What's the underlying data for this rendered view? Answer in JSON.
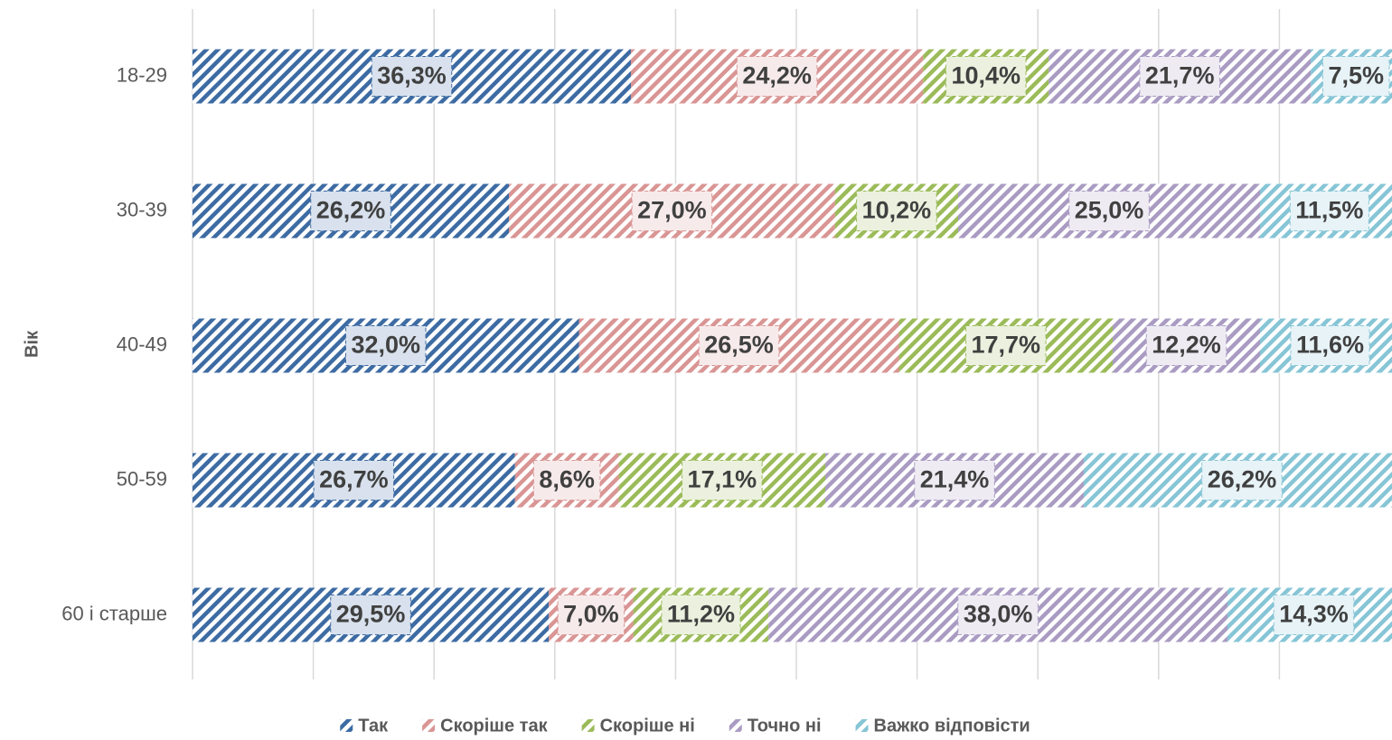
{
  "chart_data": {
    "type": "stacked-bar-horizontal",
    "y_label": "Вік",
    "categories": [
      "18-29",
      "30-39",
      "40-49",
      "50-59",
      "60 і старше"
    ],
    "xlim": [
      0,
      100
    ],
    "xticks": [
      0,
      10,
      20,
      30,
      40,
      50,
      60,
      70,
      80,
      90,
      100
    ],
    "grid": true,
    "legend": "bottom",
    "series": [
      {
        "name": "Так",
        "color": "#3d6ba3",
        "values": [
          36.3,
          26.2,
          32.0,
          26.7,
          29.5
        ],
        "value_labels": [
          "36,3%",
          "26,2%",
          "32,0%",
          "26,7%",
          "29,5%"
        ]
      },
      {
        "name": "Скоріше так",
        "color": "#d99594",
        "values": [
          24.2,
          27.0,
          26.5,
          8.6,
          7.0
        ],
        "value_labels": [
          "24,2%",
          "27,0%",
          "26,5%",
          "8,6%",
          "7,0%"
        ]
      },
      {
        "name": "Скоріше ні",
        "color": "#9bbb59",
        "values": [
          10.4,
          10.2,
          17.7,
          17.1,
          11.2
        ],
        "value_labels": [
          "10,4%",
          "10,2%",
          "17,7%",
          "17,1%",
          "11,2%"
        ]
      },
      {
        "name": "Точно ні",
        "color": "#a99bc2",
        "values": [
          21.7,
          25.0,
          12.2,
          21.4,
          38.0
        ],
        "value_labels": [
          "21,7%",
          "25,0%",
          "12,2%",
          "21,4%",
          "38,0%"
        ]
      },
      {
        "name": "Важко відповісти",
        "color": "#86c5d6",
        "values": [
          7.5,
          11.5,
          11.6,
          26.2,
          14.3
        ],
        "value_labels": [
          "7,5%",
          "11,5%",
          "11,6%",
          "26,2%",
          "14,3%"
        ]
      }
    ]
  }
}
